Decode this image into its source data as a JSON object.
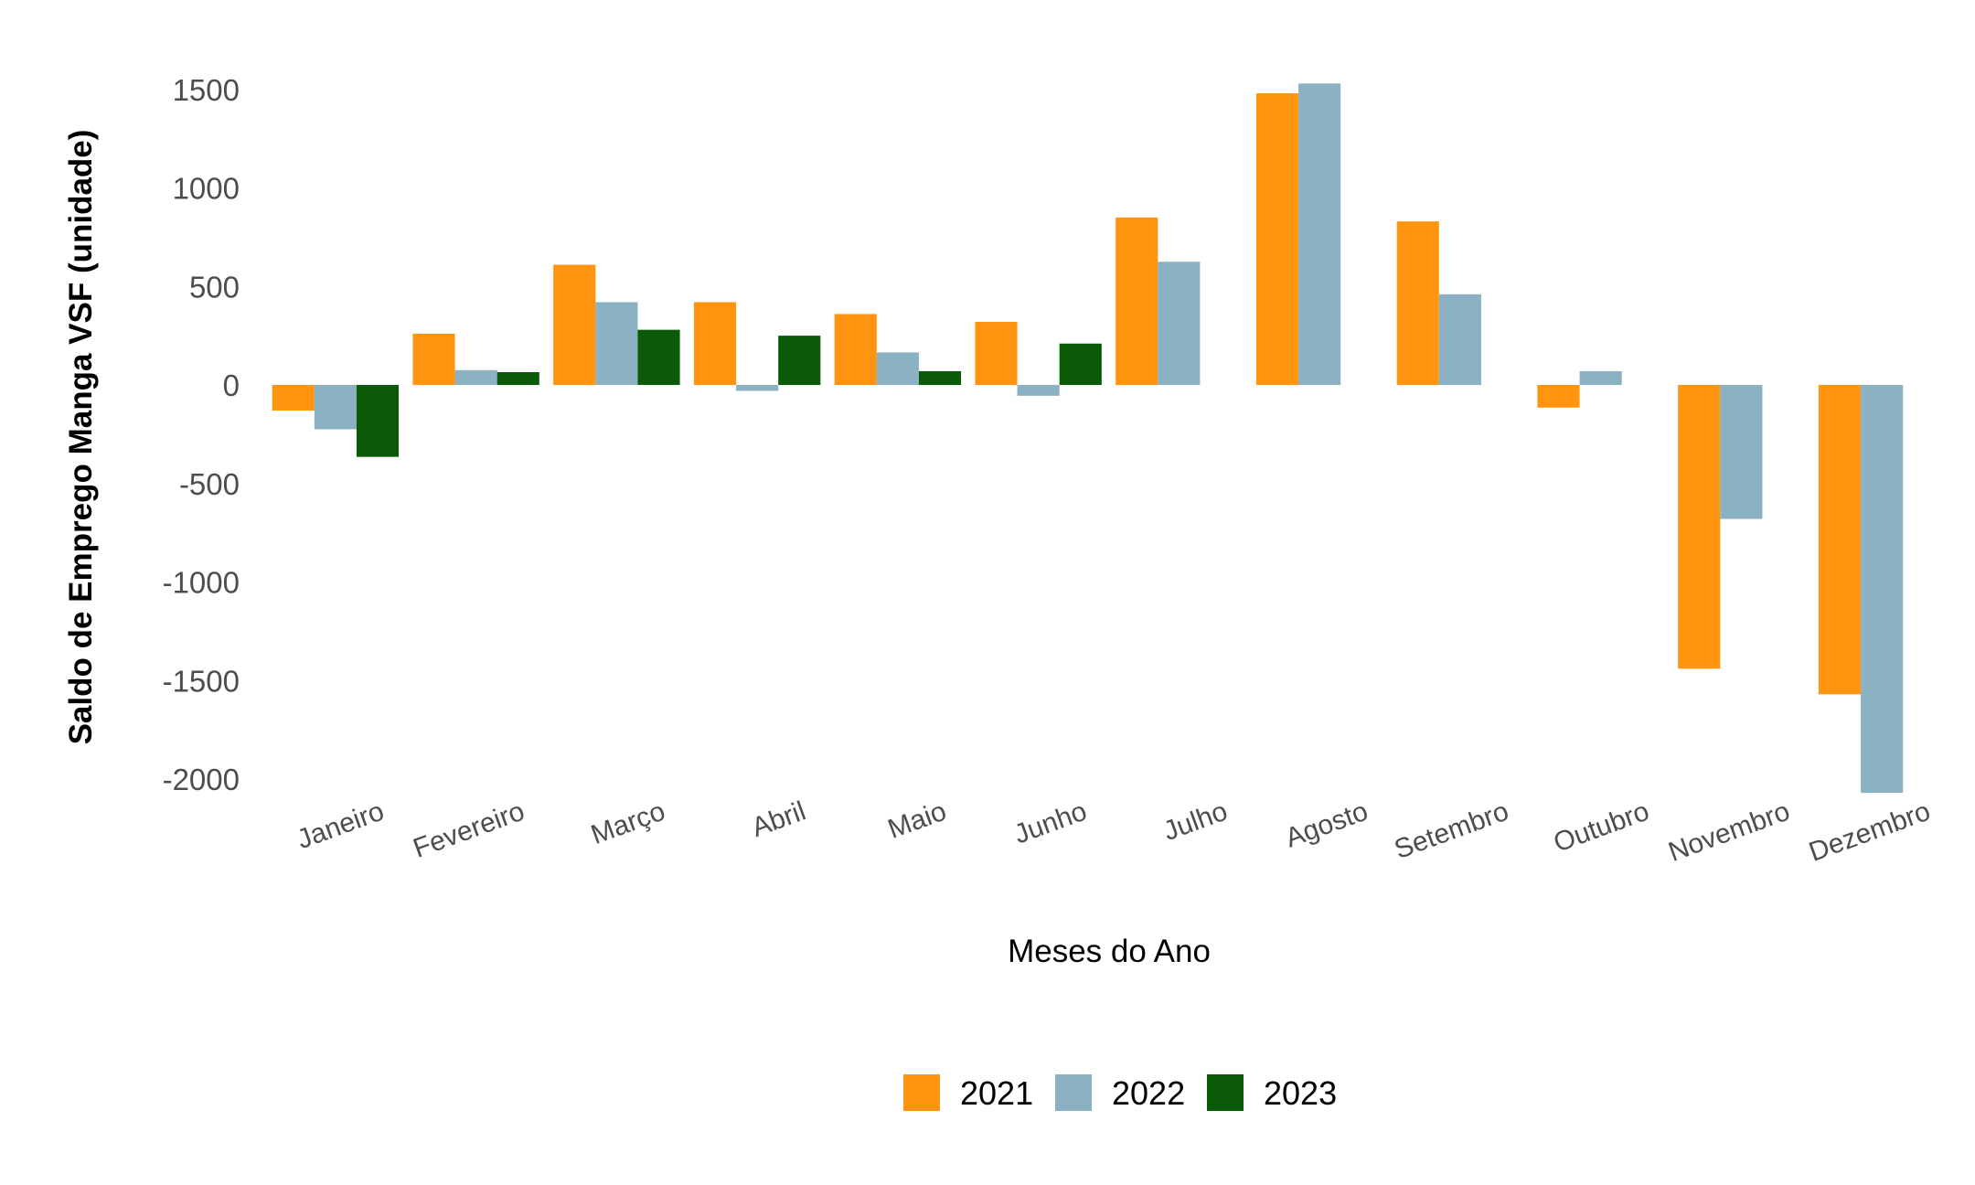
{
  "chart_data": {
    "type": "bar",
    "xlabel": "Meses do Ano",
    "ylabel": "Saldo de Emprego Manga VSF (unidade)",
    "ylim": [
      -2000,
      1700
    ],
    "yticks": [
      1500,
      1000,
      500,
      0,
      -500,
      -1000,
      -1500,
      -2000
    ],
    "grid": false,
    "legend_position": "bottom",
    "categories": [
      "Janeiro",
      "Fevereiro",
      "Março",
      "Abril",
      "Maio",
      "Junho",
      "Julho",
      "Agosto",
      "Setembro",
      "Outubro",
      "Novembro",
      "Dezembro"
    ],
    "series": [
      {
        "name": "2021",
        "color": "#FF9410",
        "values": [
          -130,
          260,
          610,
          420,
          360,
          320,
          850,
          1480,
          830,
          -115,
          -1440,
          -1570
        ]
      },
      {
        "name": "2022",
        "color": "#8BB2C2",
        "values": [
          -225,
          75,
          420,
          -30,
          165,
          -55,
          625,
          1530,
          460,
          70,
          -680,
          -2070
        ]
      },
      {
        "name": "2023",
        "color": "#0A5A08",
        "values": [
          -365,
          65,
          280,
          250,
          70,
          210,
          null,
          null,
          null,
          null,
          null,
          null
        ]
      }
    ]
  }
}
